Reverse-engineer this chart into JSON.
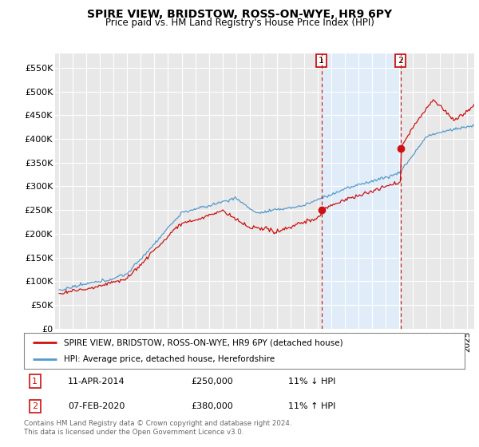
{
  "title": "SPIRE VIEW, BRIDSTOW, ROSS-ON-WYE, HR9 6PY",
  "subtitle": "Price paid vs. HM Land Registry's House Price Index (HPI)",
  "ylabel_ticks": [
    0,
    50000,
    100000,
    150000,
    200000,
    250000,
    300000,
    350000,
    400000,
    450000,
    500000,
    550000
  ],
  "ylabel_labels": [
    "£0",
    "£50K",
    "£100K",
    "£150K",
    "£200K",
    "£250K",
    "£300K",
    "£350K",
    "£400K",
    "£450K",
    "£500K",
    "£550K"
  ],
  "ylim": [
    0,
    580000
  ],
  "xlim_start": 1994.7,
  "xlim_end": 2025.5,
  "hpi_color": "#5599cc",
  "hpi_fill_color": "#ddeeff",
  "price_color": "#cc1111",
  "point1_x": 2014.27,
  "point1_y": 250000,
  "point2_x": 2020.09,
  "point2_y": 380000,
  "legend_line1": "SPIRE VIEW, BRIDSTOW, ROSS-ON-WYE, HR9 6PY (detached house)",
  "legend_line2": "HPI: Average price, detached house, Herefordshire",
  "annot1_num": "1",
  "annot1_date": "11-APR-2014",
  "annot1_price": "£250,000",
  "annot1_hpi": "11% ↓ HPI",
  "annot2_num": "2",
  "annot2_date": "07-FEB-2020",
  "annot2_price": "£380,000",
  "annot2_hpi": "11% ↑ HPI",
  "footer": "Contains HM Land Registry data © Crown copyright and database right 2024.\nThis data is licensed under the Open Government Licence v3.0.",
  "background_color": "#ffffff",
  "plot_bg_color": "#e8e8e8"
}
